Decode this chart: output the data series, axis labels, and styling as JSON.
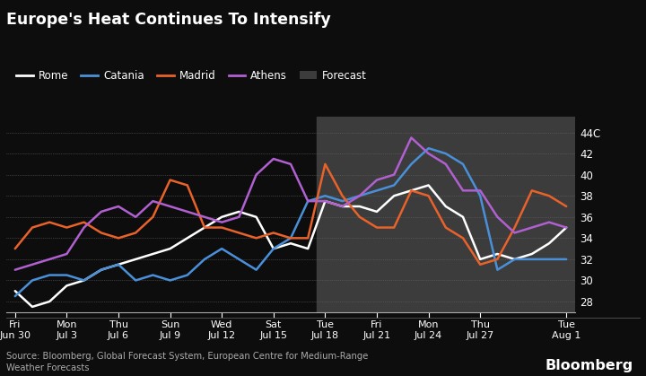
{
  "title": "Europe's Heat Continues To Intensify",
  "background_color": "#0d0d0d",
  "plot_bg_color": "#0d0d0d",
  "forecast_bg_color": "#3c3c3c",
  "source_text": "Source: Bloomberg, Global Forecast System, European Centre for Medium-Range\nWeather Forecasts",
  "bloomberg_text": "Bloomberg",
  "ylim": [
    27,
    45.5
  ],
  "yticks": [
    28,
    30,
    32,
    34,
    36,
    38,
    40,
    42,
    44
  ],
  "ytick_labels": [
    "28",
    "30",
    "32",
    "34",
    "36",
    "38",
    "40",
    "42",
    "44C"
  ],
  "x_labels": [
    "Fri\nJun 30",
    "Mon\nJul 3",
    "Thu\nJul 6",
    "Sun\nJul 9",
    "Wed\nJul 12",
    "Sat\nJul 15",
    "Tue\nJul 18",
    "Fri\nJul 21",
    "Mon\nJul 24",
    "Thu\nJul 27",
    "Tue\nAug 1"
  ],
  "x_indices": [
    0,
    3,
    6,
    9,
    12,
    15,
    18,
    21,
    24,
    27,
    32
  ],
  "x_min": -0.5,
  "x_max": 32.5,
  "forecast_start_x": 17.5,
  "forecast_end_x": 32.5,
  "series": {
    "Rome": {
      "color": "#ffffff",
      "lw": 1.8,
      "x": [
        0,
        1,
        2,
        3,
        4,
        5,
        6,
        7,
        8,
        9,
        10,
        11,
        12,
        13,
        14,
        15,
        16,
        17,
        18,
        19,
        20,
        21,
        22,
        23,
        24,
        25,
        26,
        27,
        28,
        29,
        30,
        31,
        32
      ],
      "y": [
        29.0,
        27.5,
        28.0,
        29.5,
        30.0,
        31.0,
        31.5,
        32.0,
        32.5,
        33.0,
        34.0,
        35.0,
        36.0,
        36.5,
        36.0,
        33.0,
        33.5,
        33.0,
        37.5,
        37.0,
        37.0,
        36.5,
        38.0,
        38.5,
        39.0,
        37.0,
        36.0,
        32.0,
        32.5,
        32.0,
        32.5,
        33.5,
        35.0
      ]
    },
    "Catania": {
      "color": "#4a90d9",
      "lw": 1.8,
      "x": [
        0,
        1,
        2,
        3,
        4,
        5,
        6,
        7,
        8,
        9,
        10,
        11,
        12,
        13,
        14,
        15,
        16,
        17,
        18,
        19,
        20,
        21,
        22,
        23,
        24,
        25,
        26,
        27,
        28,
        29,
        30,
        31,
        32
      ],
      "y": [
        28.5,
        30.0,
        30.5,
        30.5,
        30.0,
        31.0,
        31.5,
        30.0,
        30.5,
        30.0,
        30.5,
        32.0,
        33.0,
        32.0,
        31.0,
        33.0,
        34.0,
        37.5,
        38.0,
        37.5,
        38.0,
        38.5,
        39.0,
        41.0,
        42.5,
        42.0,
        41.0,
        38.0,
        31.0,
        32.0,
        32.0,
        32.0,
        32.0
      ]
    },
    "Madrid": {
      "color": "#e8622a",
      "lw": 1.8,
      "x": [
        0,
        1,
        2,
        3,
        4,
        5,
        6,
        7,
        8,
        9,
        10,
        11,
        12,
        13,
        14,
        15,
        16,
        17,
        18,
        19,
        20,
        21,
        22,
        23,
        24,
        25,
        26,
        27,
        28,
        29,
        30,
        31,
        32
      ],
      "y": [
        33.0,
        35.0,
        35.5,
        35.0,
        35.5,
        34.5,
        34.0,
        34.5,
        36.0,
        39.5,
        39.0,
        35.0,
        35.0,
        34.5,
        34.0,
        34.5,
        34.0,
        34.0,
        41.0,
        38.0,
        36.0,
        35.0,
        35.0,
        38.5,
        38.0,
        35.0,
        34.0,
        31.5,
        32.0,
        35.0,
        38.5,
        38.0,
        37.0
      ]
    },
    "Athens": {
      "color": "#b060d0",
      "lw": 1.8,
      "x": [
        0,
        1,
        2,
        3,
        4,
        5,
        6,
        7,
        8,
        9,
        10,
        11,
        12,
        13,
        14,
        15,
        16,
        17,
        18,
        19,
        20,
        21,
        22,
        23,
        24,
        25,
        26,
        27,
        28,
        29,
        30,
        31,
        32
      ],
      "y": [
        31.0,
        31.5,
        32.0,
        32.5,
        35.0,
        36.5,
        37.0,
        36.0,
        37.5,
        37.0,
        36.5,
        36.0,
        35.5,
        36.0,
        40.0,
        41.5,
        41.0,
        37.5,
        37.5,
        37.0,
        38.0,
        39.5,
        40.0,
        43.5,
        42.0,
        41.0,
        38.5,
        38.5,
        36.0,
        34.5,
        35.0,
        35.5,
        35.0
      ]
    }
  }
}
